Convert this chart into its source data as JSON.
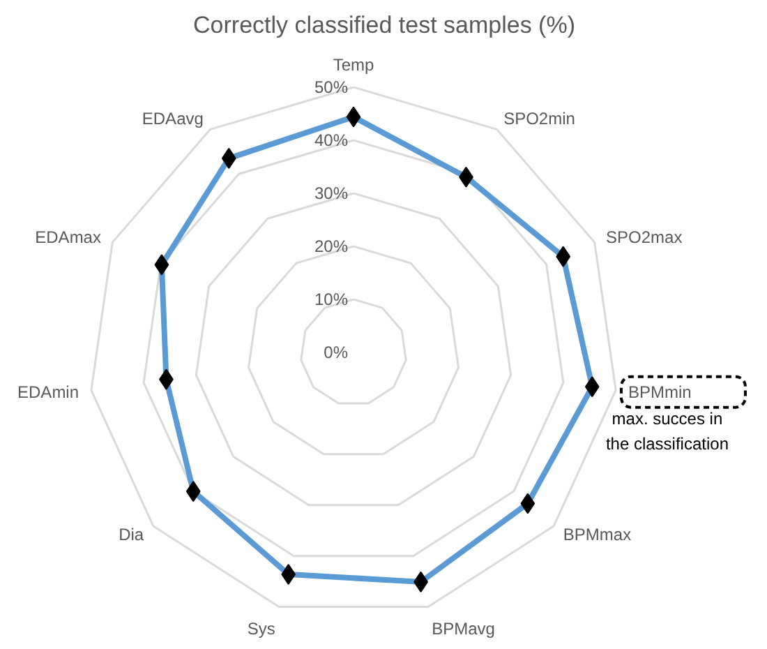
{
  "chart_data": {
    "type": "radar",
    "title": "Correctly classified test samples (%)",
    "categories": [
      "Temp",
      "SPO2min",
      "SPO2max",
      "BPMmin",
      "BPMmax",
      "BPMavg",
      "Sys",
      "Dia",
      "EDAmin",
      "EDAmax",
      "EDAavg"
    ],
    "series": [
      {
        "color": "#5b9bd5",
        "values": [
          44.4,
          39.3,
          43.5,
          45.5,
          43.5,
          45.1,
          43.6,
          40.0,
          35.7,
          39.8,
          43.5
        ]
      }
    ],
    "ylim": [
      0,
      50
    ],
    "yticks": [
      {
        "value": 0,
        "label": "0%"
      },
      {
        "value": 10,
        "label": "10%"
      },
      {
        "value": 20,
        "label": "20%"
      },
      {
        "value": 30,
        "label": "30%"
      },
      {
        "value": 40,
        "label": "40%"
      },
      {
        "value": 50,
        "label": "50%"
      }
    ],
    "grid": true,
    "marker": "diamond",
    "line_style": "solid",
    "annotations": [
      {
        "text": "max. succes in\nthe classification",
        "x": "BPMmin"
      }
    ]
  }
}
